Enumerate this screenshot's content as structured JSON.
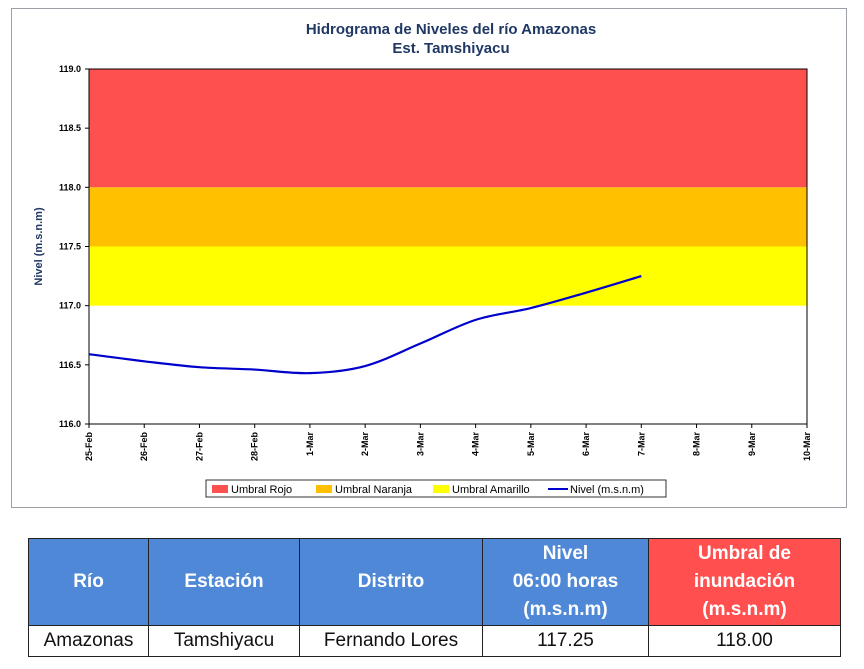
{
  "chart_data": {
    "type": "line",
    "title": "Hidrograma de Niveles del río Amazonas",
    "subtitle": "Est. Tamshiyacu",
    "ylabel": "Nivel (m.s.n.m)",
    "xlabel": "",
    "ylim": [
      116.0,
      119.0
    ],
    "yticks": [
      "116.0",
      "116.5",
      "117.0",
      "117.5",
      "118.0",
      "118.5",
      "119.0"
    ],
    "categories": [
      "25-Feb",
      "26-Feb",
      "27-Feb",
      "28-Feb",
      "1-Mar",
      "2-Mar",
      "3-Mar",
      "4-Mar",
      "5-Mar",
      "6-Mar",
      "7-Mar",
      "8-Mar",
      "9-Mar",
      "10-Mar"
    ],
    "bands": [
      {
        "name": "Umbral Rojo",
        "from": 118.0,
        "to": 119.0,
        "color": "#ff5050"
      },
      {
        "name": "Umbral Naranja",
        "from": 117.5,
        "to": 118.0,
        "color": "#ffc000"
      },
      {
        "name": "Umbral Amarillo",
        "from": 117.0,
        "to": 117.5,
        "color": "#ffff00"
      }
    ],
    "series": [
      {
        "name": "Nivel (m.s.n.m)",
        "color": "#0000cc",
        "values": [
          116.59,
          116.53,
          116.48,
          116.46,
          116.43,
          116.49,
          116.68,
          116.88,
          116.98,
          117.11,
          117.25,
          null,
          null,
          null
        ]
      }
    ],
    "legend": {
      "position": "bottom",
      "items": [
        "Umbral Rojo",
        "Umbral Naranja",
        "Umbral Amarillo",
        "Nivel (m.s.n.m)"
      ]
    },
    "grid": false
  },
  "table": {
    "headers": [
      "Río",
      "Estación",
      "Distrito",
      "Nivel\n06:00 horas\n(m.s.n.m)",
      "Umbral de\ninundación\n(m.s.n.m)"
    ],
    "row": [
      "Amazonas",
      "Tamshiyacu",
      "Fernando Lores",
      "117.25",
      "118.00"
    ]
  }
}
